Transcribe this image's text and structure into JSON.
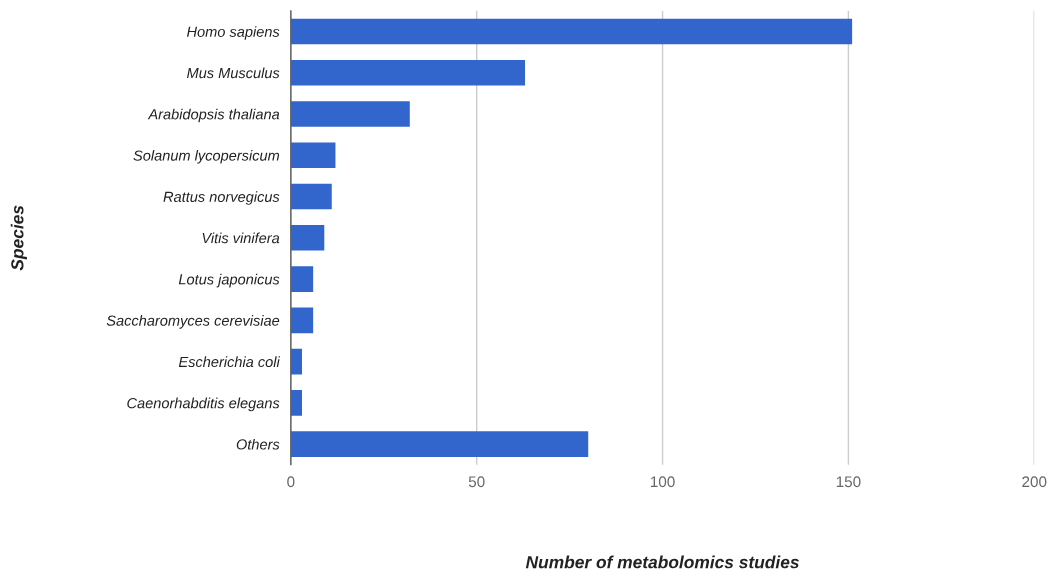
{
  "chart_data": {
    "type": "bar",
    "orientation": "horizontal",
    "xlabel": "Number of metabolomics studies",
    "ylabel": "Species",
    "categories": [
      "Homo sapiens",
      "Mus Musculus",
      "Arabidopsis thaliana",
      "Solanum lycopersicum",
      "Rattus norvegicus",
      "Vitis vinifera",
      "Lotus japonicus",
      "Saccharomyces cerevisiae",
      "Escherichia coli",
      "Caenorhabditis elegans",
      "Others"
    ],
    "values": [
      151,
      63,
      32,
      12,
      11,
      9,
      6,
      6,
      3,
      3,
      80
    ],
    "color": "#3366cc",
    "xlim": [
      0,
      200
    ],
    "xticks": [
      0,
      50,
      100,
      150,
      200
    ],
    "grid": "x",
    "legend": false
  }
}
